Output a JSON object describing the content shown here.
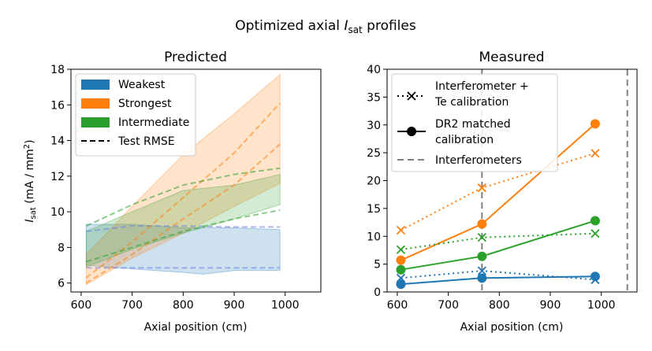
{
  "figure": {
    "suptitle_main": "Optimized axial ",
    "suptitle_sym": "I",
    "suptitle_sub": "sat",
    "suptitle_end": " profiles"
  },
  "chart_data": [
    {
      "type": "area",
      "title": "Predicted",
      "xlabel": "Axial position (cm)",
      "ylabel_sym": "I",
      "ylabel_sub": "sat",
      "ylabel_rest": " (mA / mm",
      "ylabel_sup": "2",
      "ylabel_end": ")",
      "xlim": [
        580,
        1070
      ],
      "ylim": [
        5.5,
        18
      ],
      "xticks": [
        600,
        700,
        800,
        900,
        1000
      ],
      "yticks": [
        6,
        8,
        10,
        12,
        14,
        16,
        18
      ],
      "grid": false,
      "legend_position": "top-left",
      "legend": [
        {
          "label": "Weakest",
          "color": "#1f77b4",
          "kind": "patch"
        },
        {
          "label": "Strongest",
          "color": "#ff7f0e",
          "kind": "patch"
        },
        {
          "label": "Intermediate",
          "color": "#2ca02c",
          "kind": "patch"
        },
        {
          "label": "Test RMSE",
          "color": "#000000",
          "kind": "dash"
        }
      ],
      "bands": [
        {
          "name": "Weakest",
          "color": "#1f77b4",
          "x": [
            610,
            700,
            800,
            840,
            900,
            990
          ],
          "lower": [
            7.0,
            6.8,
            6.6,
            6.5,
            6.7,
            6.7
          ],
          "upper": [
            9.3,
            9.3,
            9.1,
            9.1,
            9.1,
            9.0
          ],
          "dashes": [
            {
              "x": [
                610,
                700,
                800,
                900,
                990
              ],
              "y": [
                8.9,
                9.2,
                9.2,
                9.15,
                9.15
              ]
            },
            {
              "x": [
                610,
                700,
                800,
                900,
                990
              ],
              "y": [
                6.85,
                6.85,
                6.85,
                6.85,
                6.85
              ]
            }
          ]
        },
        {
          "name": "Strongest",
          "color": "#ff7f0e",
          "x": [
            610,
            700,
            800,
            900,
            990
          ],
          "lower": [
            5.9,
            7.4,
            8.8,
            10.3,
            11.6
          ],
          "upper": [
            7.6,
            10.3,
            13.2,
            15.5,
            17.7
          ],
          "dashes": [
            {
              "x": [
                610,
                700,
                800,
                900,
                990
              ],
              "y": [
                6.3,
                8.3,
                10.8,
                13.3,
                16.1
              ]
            },
            {
              "x": [
                610,
                700,
                800,
                900,
                990
              ],
              "y": [
                6.0,
                7.6,
                9.6,
                11.5,
                13.8
              ]
            }
          ]
        },
        {
          "name": "Intermediate",
          "color": "#2ca02c",
          "x": [
            610,
            700,
            800,
            900,
            990
          ],
          "lower": [
            6.9,
            7.9,
            8.8,
            9.6,
            10.4
          ],
          "upper": [
            8.9,
            10.0,
            11.2,
            11.5,
            12.1
          ],
          "dashes": [
            {
              "x": [
                610,
                700,
                800,
                900,
                990
              ],
              "y": [
                9.2,
                10.4,
                11.5,
                12.1,
                12.45
              ]
            },
            {
              "x": [
                610,
                700,
                800,
                900,
                990
              ],
              "y": [
                7.2,
                8.0,
                8.9,
                9.6,
                10.1
              ]
            }
          ]
        }
      ]
    },
    {
      "type": "line",
      "title": "Measured",
      "xlabel": "Axial position (cm)",
      "xlim": [
        580,
        1070
      ],
      "ylim": [
        0,
        40
      ],
      "xticks": [
        600,
        700,
        800,
        900,
        1000
      ],
      "yticks": [
        0,
        5,
        10,
        15,
        20,
        25,
        30,
        35,
        40
      ],
      "grid": false,
      "legend_position": "top-left",
      "legend": [
        {
          "label1": "Interferometer +",
          "label2": "Te calibration",
          "kind": "dotted-x"
        },
        {
          "label1": "DR2 matched",
          "label2": "calibration",
          "kind": "solid-o"
        },
        {
          "label1": "Interferometers",
          "label2": "",
          "kind": "vline"
        }
      ],
      "vlines": [
        {
          "x": 766,
          "color": "#808080"
        },
        {
          "x": 1051,
          "color": "#808080"
        }
      ],
      "x": [
        607,
        766,
        988
      ],
      "series": [
        {
          "name": "Weakest interferometer",
          "color": "#1f77b4",
          "style": "dotted",
          "marker": "x",
          "values": [
            2.5,
            3.8,
            2.2
          ]
        },
        {
          "name": "Weakest DR2",
          "color": "#1f77b4",
          "style": "solid",
          "marker": "o",
          "values": [
            1.4,
            2.5,
            2.8
          ]
        },
        {
          "name": "Strongest interferometer",
          "color": "#ff7f0e",
          "style": "dotted",
          "marker": "x",
          "values": [
            11.1,
            18.7,
            24.9
          ]
        },
        {
          "name": "Strongest DR2",
          "color": "#ff7f0e",
          "style": "solid",
          "marker": "o",
          "values": [
            5.7,
            12.2,
            30.2
          ]
        },
        {
          "name": "Intermediate interferometer",
          "color": "#2ca02c",
          "style": "dotted",
          "marker": "x",
          "values": [
            7.6,
            9.8,
            10.5
          ]
        },
        {
          "name": "Intermediate DR2",
          "color": "#2ca02c",
          "style": "solid",
          "marker": "o",
          "values": [
            4.0,
            6.4,
            12.8
          ]
        }
      ]
    }
  ]
}
